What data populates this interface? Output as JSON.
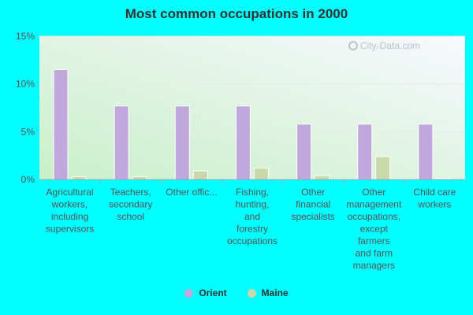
{
  "title": "Most common occupations in 2000",
  "watermark": "City-Data.com",
  "legend": [
    {
      "name": "Orient",
      "color": "#c0a8dc"
    },
    {
      "name": "Maine",
      "color": "#c8d8a8"
    }
  ],
  "chart_data": {
    "type": "bar",
    "title": "Most common occupations in 2000",
    "categories": [
      [
        "Agricultural",
        "workers,",
        "including",
        "supervisors"
      ],
      [
        "Teachers,",
        "secondary",
        "school"
      ],
      [
        "Other offic..."
      ],
      [
        "Fishing,",
        "hunting,",
        "and",
        "forestry",
        "occupations"
      ],
      [
        "Other",
        "financial",
        "specialists"
      ],
      [
        "Other",
        "management",
        "occupations,",
        "except",
        "farmers",
        "and farm",
        "managers"
      ],
      [
        "Child care",
        "workers"
      ]
    ],
    "series": [
      {
        "name": "Orient",
        "color": "#c0a8dc",
        "values": [
          11.5,
          7.7,
          7.7,
          7.7,
          5.8,
          5.8,
          5.8
        ]
      },
      {
        "name": "Maine",
        "color": "#c8d8a8",
        "values": [
          0.3,
          0.3,
          0.9,
          1.2,
          0.4,
          2.4,
          0.1
        ]
      }
    ],
    "yticks": [
      "0%",
      "5%",
      "10%",
      "15%"
    ],
    "ylim": [
      0,
      15
    ],
    "legend_position": "bottom",
    "grid": true
  }
}
